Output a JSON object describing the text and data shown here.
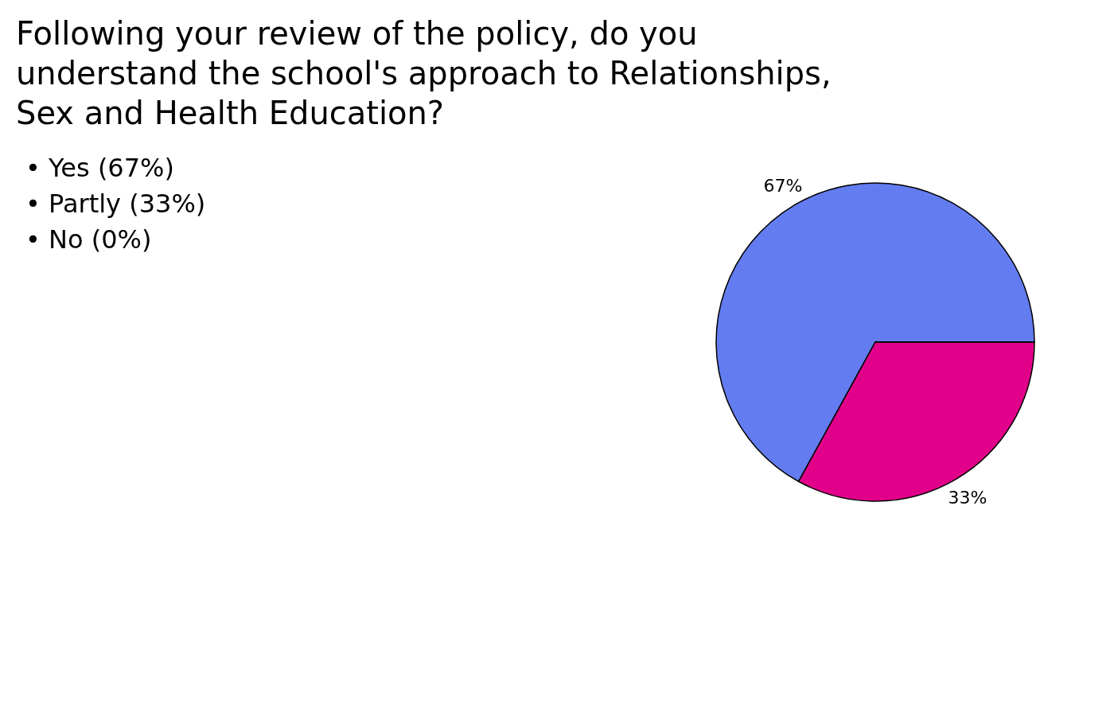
{
  "chart_data": {
    "type": "pie",
    "title": "Following your review of the policy, do you understand the school's approach to Relationships, Sex and Health Education?",
    "categories": [
      null,
      null,
      null
    ],
    "annotations": [
      "• Yes (67%)",
      "• Partly (33%)",
      "• No (0%)"
    ],
    "values": [
      67,
      33,
      0
    ],
    "colors": [
      "#637cef",
      "#e2008b",
      "#4ab2a4"
    ],
    "value_labels": [
      "67%",
      "33%",
      null
    ]
  }
}
